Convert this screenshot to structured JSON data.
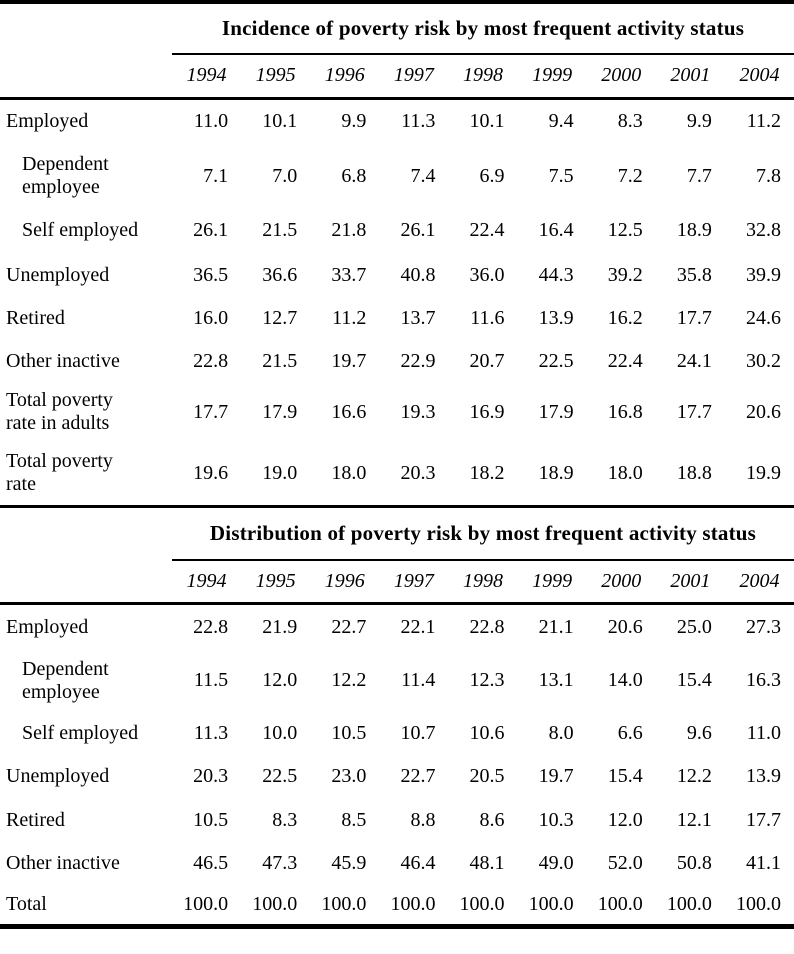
{
  "page": {
    "background_color": "#ffffff",
    "text_color": "#000000"
  },
  "tables": [
    {
      "title": "Incidence of poverty risk by most frequent activity status",
      "years": [
        "1994",
        "1995",
        "1996",
        "1997",
        "1998",
        "1999",
        "2000",
        "2001",
        "2004"
      ],
      "rows": [
        {
          "label": "Employed",
          "indent": false,
          "values": [
            "11.0",
            "10.1",
            "9.9",
            "11.3",
            "10.1",
            "9.4",
            "8.3",
            "9.9",
            "11.2"
          ]
        },
        {
          "label": "Dependent employee",
          "indent": true,
          "values": [
            "7.1",
            "7.0",
            "6.8",
            "7.4",
            "6.9",
            "7.5",
            "7.2",
            "7.7",
            "7.8"
          ]
        },
        {
          "label": "Self employed",
          "indent": true,
          "values": [
            "26.1",
            "21.5",
            "21.8",
            "26.1",
            "22.4",
            "16.4",
            "12.5",
            "18.9",
            "32.8"
          ]
        },
        {
          "label": "Unemployed",
          "indent": false,
          "values": [
            "36.5",
            "36.6",
            "33.7",
            "40.8",
            "36.0",
            "44.3",
            "39.2",
            "35.8",
            "39.9"
          ]
        },
        {
          "label": "Retired",
          "indent": false,
          "values": [
            "16.0",
            "12.7",
            "11.2",
            "13.7",
            "11.6",
            "13.9",
            "16.2",
            "17.7",
            "24.6"
          ]
        },
        {
          "label": "Other inactive",
          "indent": false,
          "values": [
            "22.8",
            "21.5",
            "19.7",
            "22.9",
            "20.7",
            "22.5",
            "22.4",
            "24.1",
            "30.2"
          ]
        },
        {
          "label": "Total poverty rate in adults",
          "indent": false,
          "values": [
            "17.7",
            "17.9",
            "16.6",
            "19.3",
            "16.9",
            "17.9",
            "16.8",
            "17.7",
            "20.6"
          ]
        },
        {
          "label": "Total poverty rate",
          "indent": false,
          "values": [
            "19.6",
            "19.0",
            "18.0",
            "20.3",
            "18.2",
            "18.9",
            "18.0",
            "18.8",
            "19.9"
          ]
        }
      ]
    },
    {
      "title": "Distribution of poverty risk by most frequent activity status",
      "years": [
        "1994",
        "1995",
        "1996",
        "1997",
        "1998",
        "1999",
        "2000",
        "2001",
        "2004"
      ],
      "rows": [
        {
          "label": "Employed",
          "indent": false,
          "values": [
            "22.8",
            "21.9",
            "22.7",
            "22.1",
            "22.8",
            "21.1",
            "20.6",
            "25.0",
            "27.3"
          ]
        },
        {
          "label": "Dependent employee",
          "indent": true,
          "values": [
            "11.5",
            "12.0",
            "12.2",
            "11.4",
            "12.3",
            "13.1",
            "14.0",
            "15.4",
            "16.3"
          ]
        },
        {
          "label": "Self employed",
          "indent": true,
          "values": [
            "11.3",
            "10.0",
            "10.5",
            "10.7",
            "10.6",
            "8.0",
            "6.6",
            "9.6",
            "11.0"
          ]
        },
        {
          "label": "Unemployed",
          "indent": false,
          "values": [
            "20.3",
            "22.5",
            "23.0",
            "22.7",
            "20.5",
            "19.7",
            "15.4",
            "12.2",
            "13.9"
          ]
        },
        {
          "label": "Retired",
          "indent": false,
          "values": [
            "10.5",
            "8.3",
            "8.5",
            "8.8",
            "8.6",
            "10.3",
            "12.0",
            "12.1",
            "17.7"
          ]
        },
        {
          "label": "Other inactive",
          "indent": false,
          "values": [
            "46.5",
            "47.3",
            "45.9",
            "46.4",
            "48.1",
            "49.0",
            "52.0",
            "50.8",
            "41.1"
          ]
        },
        {
          "label": "Total",
          "indent": false,
          "values": [
            "100.0",
            "100.0",
            "100.0",
            "100.0",
            "100.0",
            "100.0",
            "100.0",
            "100.0",
            "100.0"
          ]
        }
      ]
    }
  ]
}
